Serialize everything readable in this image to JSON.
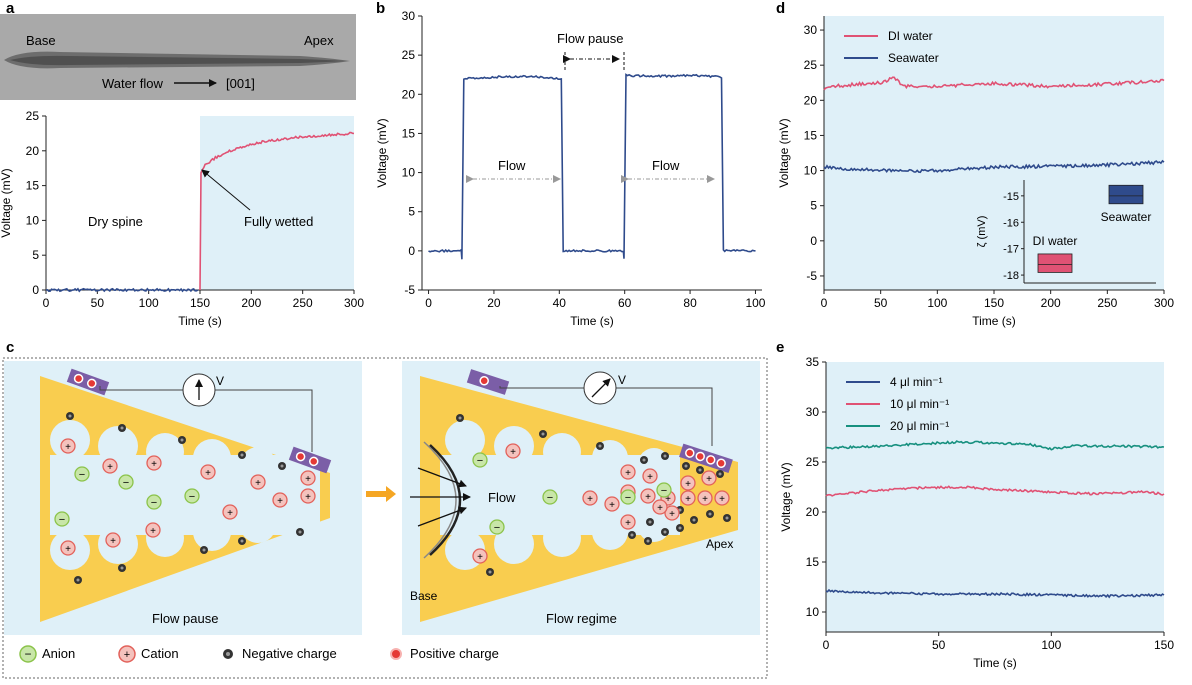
{
  "panels": {
    "a": {
      "letter": "a",
      "photo_labels": {
        "base": "Base",
        "apex": "Apex",
        "flow": "Water flow",
        "direction": "[001]"
      },
      "annotations": {
        "dry": "Dry spine",
        "wet": "Fully wetted"
      }
    },
    "b": {
      "letter": "b",
      "annotations": {
        "pause": "Flow pause",
        "flow1": "Flow",
        "flow2": "Flow"
      }
    },
    "c": {
      "letter": "c",
      "meter_label": "V",
      "left_caption": "Flow pause",
      "right_caption": "Flow regime",
      "flow_label": "Flow",
      "base_label": "Base",
      "apex_label": "Apex",
      "legend": {
        "anion": "Anion",
        "cation": "Cation",
        "negative": "Negative charge",
        "positive": "Positive charge"
      }
    },
    "d": {
      "letter": "d"
    },
    "e": {
      "letter": "e"
    }
  },
  "colors": {
    "blue_line": "#2f4b8c",
    "pink_line": "#e05274",
    "teal_line": "#17907f",
    "light_blue_bg": "#dff0f8",
    "cone_yellow": "#f9cd4f",
    "arrow_orange": "#f5a623",
    "anion_green": "#8bc34a",
    "cation_red": "#e2615a"
  },
  "chart_data": [
    {
      "id": "a",
      "type": "line",
      "xlabel": "Time (s)",
      "ylabel": "Voltage (mV)",
      "xlim": [
        0,
        300
      ],
      "ylim": [
        0,
        25
      ],
      "xticks": [
        0,
        50,
        100,
        150,
        200,
        250,
        300
      ],
      "yticks": [
        0,
        5,
        10,
        15,
        20,
        25
      ],
      "shaded_region_x": [
        150,
        300
      ],
      "series": [
        {
          "color": "#2f4b8c",
          "x": [
            0,
            50,
            100,
            148
          ],
          "y": [
            0,
            0,
            0,
            0
          ]
        },
        {
          "color": "#e05274",
          "x": [
            150,
            151,
            155,
            165,
            180,
            200,
            220,
            250,
            280,
            300
          ],
          "y": [
            0,
            17,
            18,
            19,
            20,
            21,
            21.5,
            22,
            22.3,
            22.5
          ]
        }
      ]
    },
    {
      "id": "b",
      "type": "line",
      "xlabel": "Time (s)",
      "ylabel": "Voltage (mV)",
      "xlim": [
        -2,
        102
      ],
      "ylim": [
        -5,
        30
      ],
      "xticks": [
        0,
        20,
        40,
        60,
        80,
        100
      ],
      "yticks": [
        -5,
        0,
        5,
        10,
        15,
        20,
        25,
        30
      ],
      "series": [
        {
          "color": "#2f4b8c",
          "x": [
            0,
            10,
            10.2,
            10.8,
            20,
            30,
            40.6,
            41.2,
            41.6,
            50,
            59.6,
            59.8,
            60.4,
            70,
            80,
            89.6,
            90.2,
            90.6,
            100
          ],
          "y": [
            0,
            0,
            -1,
            22,
            22.2,
            22.3,
            22,
            0,
            0,
            0,
            0,
            -1,
            22.4,
            22.3,
            22.4,
            22.2,
            0,
            0,
            0
          ]
        }
      ]
    },
    {
      "id": "d",
      "type": "line",
      "xlabel": "Time (s)",
      "ylabel": "Voltage (mV)",
      "xlim": [
        0,
        300
      ],
      "ylim": [
        -7,
        32
      ],
      "xticks": [
        0,
        50,
        100,
        150,
        200,
        250,
        300
      ],
      "yticks": [
        -5,
        0,
        5,
        10,
        15,
        20,
        25,
        30
      ],
      "series": [
        {
          "name": "DI water",
          "color": "#e05274",
          "x": [
            0,
            10,
            30,
            50,
            62,
            70,
            100,
            150,
            200,
            250,
            300
          ],
          "y": [
            21.5,
            22,
            22.3,
            22.5,
            23.2,
            22,
            22,
            22.4,
            22,
            22.3,
            22.8
          ]
        },
        {
          "name": "Seawater",
          "color": "#2f4b8c",
          "x": [
            0,
            20,
            50,
            70,
            100,
            150,
            200,
            250,
            300
          ],
          "y": [
            10.5,
            10.2,
            10.1,
            9.9,
            10,
            10.5,
            10.6,
            10.8,
            11.2
          ]
        }
      ],
      "inset": {
        "type": "box",
        "ylabel": "ζ (mV)",
        "ylim": [
          -18.3,
          -14.4
        ],
        "yticks": [
          -18,
          -17,
          -16,
          -15
        ],
        "boxes": [
          {
            "label": "DI water",
            "color": "#e05274",
            "q1": -17.9,
            "median": -17.6,
            "q3": -17.2
          },
          {
            "label": "Seawater",
            "color": "#2f4b8c",
            "q1": -15.3,
            "median": -15.0,
            "q3": -14.6
          }
        ]
      }
    },
    {
      "id": "e",
      "type": "line",
      "xlabel": "Time (s)",
      "ylabel": "Voltage (mV)",
      "xlim": [
        0,
        150
      ],
      "ylim": [
        8,
        35
      ],
      "xticks": [
        0,
        50,
        100,
        150
      ],
      "yticks": [
        10,
        15,
        20,
        25,
        30,
        35
      ],
      "series": [
        {
          "name": "4 μl min⁻¹",
          "color": "#2f4b8c",
          "x": [
            0,
            25,
            50,
            75,
            100,
            125,
            150
          ],
          "y": [
            12.1,
            11.9,
            11.8,
            11.8,
            11.7,
            11.6,
            11.7
          ]
        },
        {
          "name": "10 μl min⁻¹",
          "color": "#e05274",
          "x": [
            0,
            20,
            40,
            60,
            80,
            100,
            120,
            140,
            150
          ],
          "y": [
            21.6,
            22.1,
            22.4,
            22.5,
            22.2,
            22,
            21.8,
            22,
            21.8
          ]
        },
        {
          "name": "20 μl min⁻¹",
          "color": "#17907f",
          "x": [
            0,
            25,
            50,
            60,
            90,
            100,
            110,
            130,
            150
          ],
          "y": [
            26.4,
            26.6,
            26.9,
            27,
            26.8,
            26.3,
            26.6,
            26.6,
            26.5
          ]
        }
      ]
    }
  ]
}
